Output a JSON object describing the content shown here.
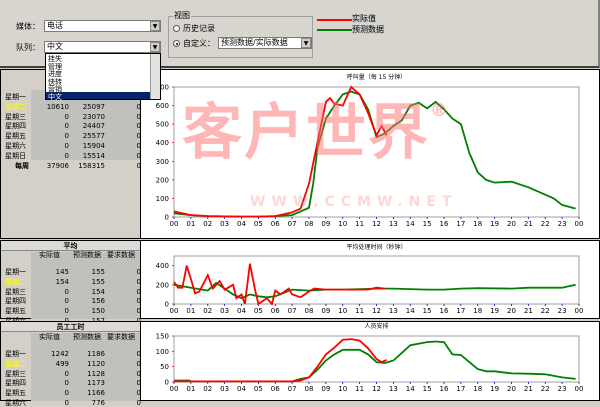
{
  "controls": {
    "media_label": "媒体：",
    "media_value": "电话",
    "queue_label": "队列：",
    "queue_value": "中文",
    "queue_options": [
      "挂失",
      "管理",
      "进度",
      "快转",
      "营销",
      "中文"
    ],
    "view_group": "视图",
    "view_history": "历史记录",
    "view_custom": "自定义：",
    "view_custom_value": "预测数据/实际数据",
    "selected_view": "自定义"
  },
  "legend": [
    {
      "label": "实际值",
      "color": "#ff0000"
    },
    {
      "label": "预测数据",
      "color": "#008000"
    }
  ],
  "tables": {
    "volume": {
      "rows": [
        {
          "day": "星期一",
          "values": [
            "",
            "",
            ""
          ]
        },
        {
          "day": "星期二",
          "values": [
            "10610",
            "25097",
            "0"
          ],
          "highlight": true
        },
        {
          "day": "星期三",
          "values": [
            "0",
            "23070",
            "0"
          ]
        },
        {
          "day": "星期四",
          "values": [
            "0",
            "24407",
            "0"
          ]
        },
        {
          "day": "星期五",
          "values": [
            "0",
            "25577",
            "0"
          ]
        },
        {
          "day": "星期六",
          "values": [
            "0",
            "15904",
            "0"
          ]
        },
        {
          "day": "星期日",
          "values": [
            "0",
            "15514",
            "0"
          ]
        },
        {
          "day": "每周",
          "values": [
            "37906",
            "158315",
            "0"
          ],
          "bold": true
        }
      ]
    },
    "average": {
      "title": "平均",
      "columns": [
        "实际值",
        "预测数据",
        "要求数据"
      ],
      "rows": [
        {
          "day": "星期一",
          "values": [
            "145",
            "155",
            "0"
          ]
        },
        {
          "day": "星期二",
          "values": [
            "154",
            "155",
            "0"
          ],
          "highlight": true
        },
        {
          "day": "星期三",
          "values": [
            "0",
            "154",
            "0"
          ]
        },
        {
          "day": "星期四",
          "values": [
            "0",
            "156",
            "0"
          ]
        },
        {
          "day": "星期五",
          "values": [
            "0",
            "150",
            "0"
          ]
        },
        {
          "day": "星期六",
          "values": [
            "0",
            "157",
            "0"
          ]
        }
      ]
    },
    "staff": {
      "title": "员工工时",
      "columns": [
        "实际值",
        "预测数据",
        "要求数据"
      ],
      "rows": [
        {
          "day": "星期一",
          "values": [
            "1242",
            "1186",
            "0"
          ]
        },
        {
          "day": "星期二",
          "values": [
            "499",
            "1120",
            "0"
          ],
          "highlight": true
        },
        {
          "day": "星期三",
          "values": [
            "0",
            "1128",
            "0"
          ]
        },
        {
          "day": "星期四",
          "values": [
            "0",
            "1173",
            "0"
          ]
        },
        {
          "day": "星期五",
          "values": [
            "0",
            "1166",
            "0"
          ]
        },
        {
          "day": "星期六",
          "values": [
            "0",
            "776",
            "0"
          ]
        }
      ]
    }
  },
  "watermark": {
    "text": "客户世界",
    "mark": "®",
    "url": "WWW.CCMW.NET"
  },
  "chart_data": [
    {
      "type": "line",
      "title": "呼叫量（每 15 分钟）",
      "ylim": [
        0,
        700
      ],
      "yticks": [
        0,
        100,
        200,
        300,
        400,
        500,
        600,
        700
      ],
      "xticks": [
        "00",
        "01",
        "02",
        "03",
        "04",
        "05",
        "06",
        "07",
        "08",
        "09",
        "10",
        "11",
        "12",
        "13",
        "14",
        "15",
        "16",
        "17",
        "18",
        "19",
        "20",
        "21",
        "22",
        "23",
        "00"
      ],
      "series": [
        {
          "name": "预测数据",
          "color": "#008000",
          "x": [
            0,
            1,
            2,
            3,
            4,
            5,
            6,
            7,
            7.5,
            8,
            8.25,
            8.5,
            9,
            9.5,
            10,
            10.5,
            11,
            11.5,
            12,
            12.5,
            13,
            13.5,
            14,
            14.5,
            15,
            15.5,
            16,
            16.5,
            17,
            17.5,
            18,
            18.5,
            19,
            20,
            21,
            22,
            22.5,
            23,
            23.8
          ],
          "y": [
            20,
            10,
            5,
            3,
            2,
            2,
            5,
            10,
            30,
            50,
            180,
            370,
            530,
            600,
            660,
            675,
            660,
            580,
            430,
            450,
            490,
            520,
            600,
            615,
            585,
            620,
            580,
            530,
            500,
            345,
            240,
            200,
            185,
            190,
            160,
            120,
            100,
            65,
            45
          ]
        },
        {
          "name": "实际值",
          "color": "#ff0000",
          "x": [
            0,
            0.5,
            1,
            2,
            3,
            4,
            5,
            6,
            7,
            7.5,
            8,
            8.5,
            9,
            9.25,
            9.5,
            10,
            10.5,
            11,
            11.5,
            12,
            12.3,
            12.6
          ],
          "y": [
            30,
            20,
            10,
            5,
            3,
            2,
            2,
            5,
            25,
            45,
            180,
            400,
            620,
            640,
            610,
            600,
            700,
            660,
            560,
            440,
            490,
            440
          ]
        }
      ]
    },
    {
      "type": "line",
      "title": "平均处理时间（秒钟）",
      "ylim": [
        0,
        500
      ],
      "yticks": [
        0,
        200,
        400
      ],
      "xticks": [
        "00",
        "01",
        "02",
        "03",
        "04",
        "05",
        "06",
        "07",
        "08",
        "09",
        "10",
        "11",
        "12",
        "13",
        "14",
        "15",
        "16",
        "17",
        "18",
        "19",
        "20",
        "21",
        "22",
        "23",
        "00"
      ],
      "series": [
        {
          "name": "预测数据",
          "color": "#008000",
          "x": [
            0,
            1,
            2,
            2.5,
            3,
            3.5,
            4,
            4.5,
            5,
            5.5,
            6,
            7,
            8,
            9,
            10,
            12,
            13,
            15,
            16,
            17,
            18,
            20,
            21,
            22,
            23,
            23.8
          ],
          "y": [
            200,
            170,
            140,
            220,
            160,
            100,
            60,
            100,
            80,
            70,
            80,
            150,
            140,
            150,
            150,
            160,
            160,
            150,
            150,
            160,
            165,
            160,
            170,
            170,
            170,
            200
          ]
        },
        {
          "name": "实际值",
          "color": "#ff0000",
          "x": [
            0,
            0.25,
            0.5,
            0.75,
            1,
            1.25,
            1.5,
            2,
            2.3,
            2.7,
            3,
            3.5,
            3.7,
            4,
            4.2,
            4.5,
            4.8,
            5,
            5.5,
            5.8,
            6,
            6.3,
            6.8,
            7,
            7.5,
            8,
            8.3,
            9,
            9.5,
            10,
            11,
            11.5,
            12,
            12.5
          ],
          "y": [
            230,
            170,
            170,
            400,
            260,
            110,
            130,
            300,
            160,
            240,
            150,
            200,
            60,
            100,
            0,
            420,
            150,
            0,
            60,
            0,
            140,
            100,
            160,
            100,
            70,
            130,
            160,
            150,
            150,
            150,
            150,
            150,
            170,
            160
          ]
        }
      ]
    },
    {
      "type": "line",
      "title": "人员安排",
      "ylim": [
        0,
        150
      ],
      "yticks": [
        0,
        50,
        100,
        150
      ],
      "xticks": [
        "00",
        "01",
        "02",
        "03",
        "04",
        "05",
        "06",
        "07",
        "08",
        "09",
        "10",
        "11",
        "12",
        "13",
        "14",
        "15",
        "16",
        "17",
        "18",
        "19",
        "20",
        "21",
        "22",
        "23",
        "00"
      ],
      "series": [
        {
          "name": "预测数据",
          "color": "#008000",
          "x": [
            0,
            0.9,
            1,
            7,
            7.5,
            8,
            8.5,
            9,
            9.5,
            10,
            11,
            11.5,
            12,
            12.5,
            13,
            13.5,
            14,
            15,
            15.5,
            16,
            16.5,
            17,
            17.5,
            18,
            18.5,
            19,
            20,
            21,
            22,
            23,
            23.8
          ],
          "y": [
            5,
            5,
            2,
            2,
            10,
            15,
            40,
            70,
            90,
            105,
            105,
            90,
            65,
            62,
            70,
            95,
            120,
            130,
            132,
            130,
            90,
            88,
            65,
            42,
            35,
            35,
            28,
            27,
            25,
            15,
            10
          ]
        },
        {
          "name": "实际值",
          "color": "#ff0000",
          "x": [
            0,
            7,
            7.5,
            8,
            8.5,
            9,
            9.5,
            10,
            10.5,
            11,
            11.5,
            12,
            12.3,
            12.6
          ],
          "y": [
            2,
            2,
            5,
            15,
            50,
            90,
            112,
            138,
            140,
            135,
            110,
            75,
            65,
            72
          ]
        }
      ]
    }
  ]
}
